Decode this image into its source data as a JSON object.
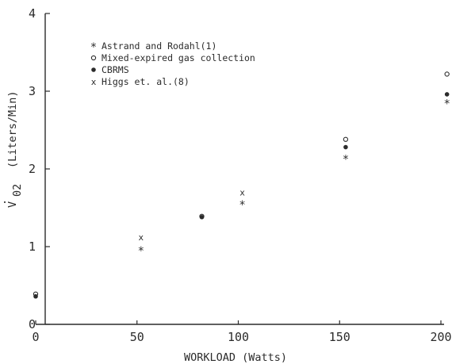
{
  "chart_data": {
    "type": "scatter",
    "title": "",
    "xlabel": "WORKLOAD (Watts)",
    "ylabel": {
      "symbol": "V",
      "subscript": "02",
      "unit": "(Liters/Min)"
    },
    "xlim": [
      0,
      200
    ],
    "ylim": [
      0,
      4
    ],
    "x_ticks": [
      {
        "value": 0,
        "label": "0"
      },
      {
        "value": 50,
        "label": "50"
      },
      {
        "value": 100,
        "label": "100"
      },
      {
        "value": 150,
        "label": "150"
      },
      {
        "value": 200,
        "label": "200"
      }
    ],
    "y_ticks": [
      {
        "value": 0,
        "label": "0"
      },
      {
        "value": 1,
        "label": "1"
      },
      {
        "value": 2,
        "label": "2"
      },
      {
        "value": 3,
        "label": "3"
      },
      {
        "value": 4,
        "label": "4"
      }
    ],
    "grid": false,
    "legend_position": "top-left",
    "series": [
      {
        "name": "Astrand and Rodahl(1)",
        "marker": "asterisk",
        "points": [
          {
            "x": 52,
            "y": 0.96
          },
          {
            "x": 102,
            "y": 1.55
          },
          {
            "x": 153,
            "y": 2.14
          },
          {
            "x": 203,
            "y": 2.85
          }
        ]
      },
      {
        "name": "Mixed-expired gas collection",
        "marker": "open-circle",
        "points": [
          {
            "x": 0,
            "y": 0.39
          },
          {
            "x": 82,
            "y": 1.39
          },
          {
            "x": 153,
            "y": 2.38
          },
          {
            "x": 203,
            "y": 3.22
          }
        ]
      },
      {
        "name": "CBRMS",
        "marker": "filled-circle",
        "points": [
          {
            "x": 0,
            "y": 0.36
          },
          {
            "x": 82,
            "y": 1.38
          },
          {
            "x": 153,
            "y": 2.28
          },
          {
            "x": 203,
            "y": 2.96
          }
        ]
      },
      {
        "name": "Higgs et. al.(8)",
        "marker": "x",
        "points": [
          {
            "x": 52,
            "y": 1.12
          },
          {
            "x": 102,
            "y": 1.7
          }
        ]
      }
    ]
  }
}
